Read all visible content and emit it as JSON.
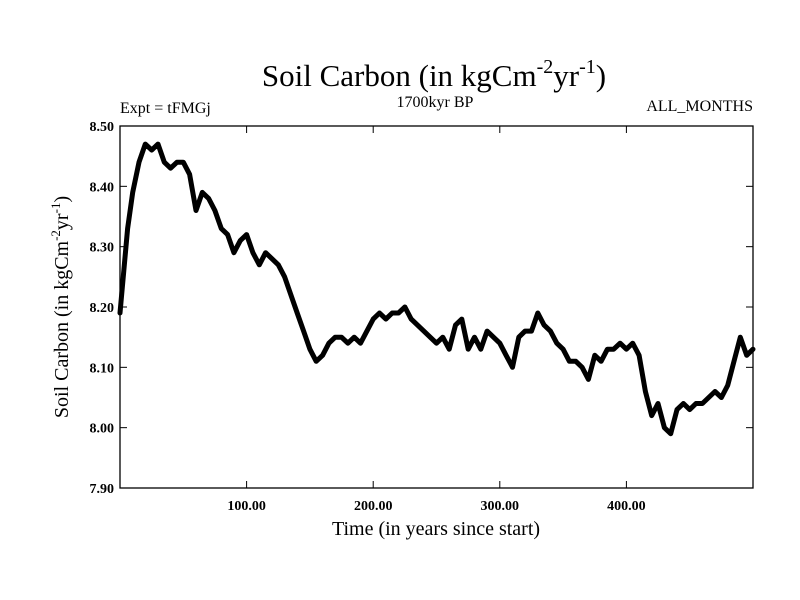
{
  "chart_data": {
    "type": "line",
    "title": "Soil Carbon (in kgCm",
    "title_unit_exponents": [
      "-2",
      "yr",
      "-1",
      ")"
    ],
    "subtitle_left": "Expt = tFMGj",
    "subtitle_center": "1700kyr BP",
    "subtitle_right": "ALL_MONTHS",
    "xlabel": "Time (in years since start)",
    "ylabel": "Soil Carbon (in kgCm",
    "ylabel_unit_exponents": [
      "-2",
      "yr",
      "-1",
      ")"
    ],
    "xlim": [
      0,
      500
    ],
    "ylim": [
      7.9,
      8.5
    ],
    "x_ticks": [
      100,
      200,
      300,
      400
    ],
    "x_tick_labels": [
      "100.00",
      "200.00",
      "300.00",
      "400.00"
    ],
    "y_ticks": [
      7.9,
      8.0,
      8.1,
      8.2,
      8.3,
      8.4,
      8.5
    ],
    "y_tick_labels": [
      "7.90",
      "8.00",
      "8.10",
      "8.20",
      "8.30",
      "8.40",
      "8.50"
    ],
    "grid": false,
    "line_color": "#000000",
    "series": [
      {
        "x": [
          0,
          3,
          6,
          10,
          15,
          20,
          25,
          30,
          35,
          40,
          45,
          50,
          55,
          60,
          65,
          70,
          75,
          80,
          85,
          90,
          95,
          100,
          105,
          110,
          115,
          120,
          125,
          130,
          135,
          140,
          145,
          150,
          155,
          160,
          165,
          170,
          175,
          180,
          185,
          190,
          195,
          200,
          205,
          210,
          215,
          220,
          225,
          230,
          235,
          240,
          245,
          250,
          255,
          260,
          265,
          270,
          275,
          280,
          285,
          290,
          295,
          300,
          305,
          310,
          315,
          320,
          325,
          330,
          335,
          340,
          345,
          350,
          355,
          360,
          365,
          370,
          375,
          380,
          385,
          390,
          395,
          400,
          405,
          410,
          415,
          420,
          425,
          430,
          435,
          440,
          445,
          450,
          455,
          460,
          465,
          470,
          475,
          480,
          485,
          490,
          495,
          500
        ],
        "values": [
          8.19,
          8.26,
          8.33,
          8.39,
          8.44,
          8.47,
          8.46,
          8.47,
          8.44,
          8.43,
          8.44,
          8.44,
          8.42,
          8.36,
          8.39,
          8.38,
          8.36,
          8.33,
          8.32,
          8.29,
          8.31,
          8.32,
          8.29,
          8.27,
          8.29,
          8.28,
          8.27,
          8.25,
          8.22,
          8.19,
          8.16,
          8.13,
          8.11,
          8.12,
          8.14,
          8.15,
          8.15,
          8.14,
          8.15,
          8.14,
          8.16,
          8.18,
          8.19,
          8.18,
          8.19,
          8.19,
          8.2,
          8.18,
          8.17,
          8.16,
          8.15,
          8.14,
          8.15,
          8.13,
          8.17,
          8.18,
          8.13,
          8.15,
          8.13,
          8.16,
          8.15,
          8.14,
          8.12,
          8.1,
          8.15,
          8.16,
          8.16,
          8.19,
          8.17,
          8.16,
          8.14,
          8.13,
          8.11,
          8.11,
          8.1,
          8.08,
          8.12,
          8.11,
          8.13,
          8.13,
          8.14,
          8.13,
          8.14,
          8.12,
          8.06,
          8.02,
          8.04,
          8.0,
          7.99,
          8.03,
          8.04,
          8.03,
          8.04,
          8.04,
          8.05,
          8.06,
          8.05,
          8.07,
          8.11,
          8.15,
          8.12,
          8.13
        ]
      }
    ]
  }
}
